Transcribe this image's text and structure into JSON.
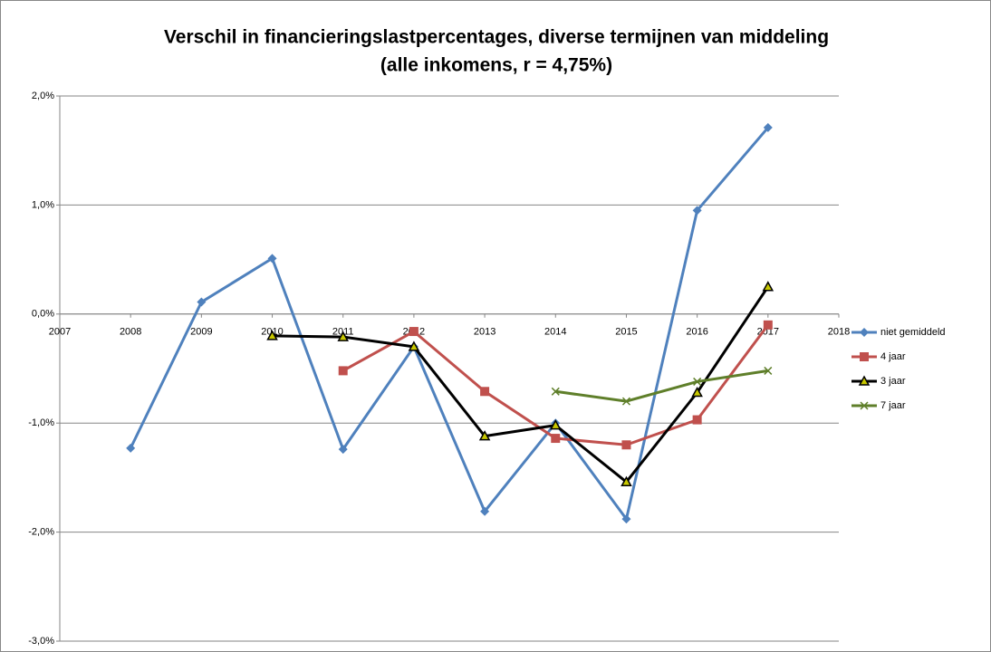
{
  "chart_data": {
    "type": "line",
    "title": "Verschil in financieringslastpercentages, diverse termijnen van middeling",
    "subtitle": "(alle inkomens, r = 4,75%)",
    "xlim": [
      2007,
      2018
    ],
    "xticks": [
      2007,
      2008,
      2009,
      2010,
      2011,
      2012,
      2013,
      2014,
      2015,
      2016,
      2017,
      2018
    ],
    "ylim": [
      -3,
      2
    ],
    "yticks": [
      {
        "value": -3,
        "label": "-3,0%"
      },
      {
        "value": -2,
        "label": "-2,0%"
      },
      {
        "value": -1,
        "label": "-1,0%"
      },
      {
        "value": 0,
        "label": "0,0%"
      },
      {
        "value": 1,
        "label": "1,0%"
      },
      {
        "value": 2,
        "label": "2,0%"
      }
    ],
    "grid": true,
    "legend": "right",
    "series": [
      {
        "name": "niet gemiddeld",
        "color": "#4f81bd",
        "marker": "diamond",
        "x": [
          2008,
          2009,
          2010,
          2011,
          2012,
          2013,
          2014,
          2015,
          2016,
          2017
        ],
        "values": [
          -1.23,
          0.11,
          0.51,
          -1.24,
          -0.3,
          -1.81,
          -1.0,
          -1.88,
          0.95,
          1.71
        ]
      },
      {
        "name": "4 jaar",
        "color": "#c0504d",
        "marker": "square",
        "x": [
          2011,
          2012,
          2013,
          2014,
          2015,
          2016,
          2017
        ],
        "values": [
          -0.52,
          -0.16,
          -0.71,
          -1.14,
          -1.2,
          -0.97,
          -0.1
        ]
      },
      {
        "name": "3 jaar",
        "color": "#000000",
        "marker": "triangle",
        "x": [
          2010,
          2011,
          2012,
          2013,
          2014,
          2015,
          2016,
          2017
        ],
        "values": [
          -0.2,
          -0.21,
          -0.3,
          -1.12,
          -1.02,
          -1.54,
          -0.72,
          0.25
        ]
      },
      {
        "name": "7 jaar",
        "color": "#5f7f2a",
        "marker": "x",
        "x": [
          2014,
          2015,
          2016,
          2017
        ],
        "values": [
          -0.71,
          -0.8,
          -0.62,
          -0.52
        ]
      }
    ]
  }
}
